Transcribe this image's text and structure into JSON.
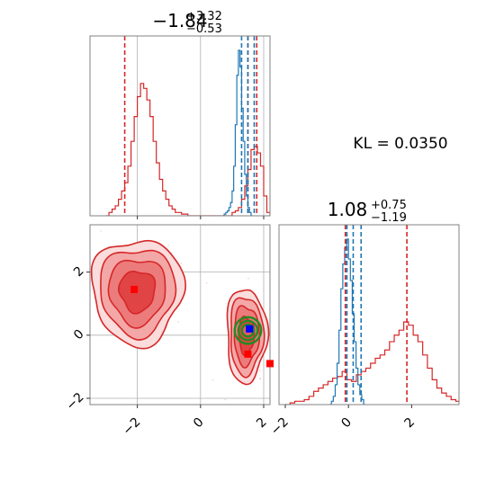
{
  "colors": {
    "prior": "#d62728",
    "posterior": "#1f77b4",
    "truth": "#0000ff",
    "reference": "#228b22",
    "samples": "#ff0000"
  },
  "kl_label": "KL = 0.0350",
  "chart_data": [
    {
      "type": "histogram",
      "panel": "marginal-x",
      "title": {
        "median": "−1.84",
        "plus": "+3.32",
        "minus": "−0.53"
      },
      "xlim": [
        -3.5,
        2.2
      ],
      "grid": true,
      "series": [
        {
          "name": "",
          "color": "#d62728",
          "bins_start": -3.0,
          "bin_width": 0.1,
          "heights": [
            0,
            0.02,
            0.04,
            0.06,
            0.1,
            0.15,
            0.2,
            0.3,
            0.45,
            0.6,
            0.72,
            0.8,
            0.77,
            0.7,
            0.6,
            0.45,
            0.32,
            0.22,
            0.15,
            0.1,
            0.06,
            0.04,
            0.02,
            0.02,
            0.01,
            0.01,
            0,
            0,
            0,
            0,
            0,
            0,
            0,
            0,
            0,
            0,
            0,
            0,
            0,
            0,
            0.02,
            0.03,
            0.05,
            0.1,
            0.18,
            0.28,
            0.4,
            0.42,
            0.38,
            0.3,
            0.12,
            0.02
          ]
        },
        {
          "name": "",
          "color": "#1f77b4",
          "bins_start": 0.7,
          "bin_width": 0.05,
          "heights": [
            0,
            0.01,
            0.02,
            0.03,
            0.05,
            0.08,
            0.15,
            0.3,
            0.55,
            0.85,
            1.0,
            0.9,
            0.65,
            0.45,
            0.25,
            0.12,
            0.05,
            0.02,
            0.0
          ]
        }
      ],
      "vlines": [
        {
          "x": -2.4,
          "color": "#d62728",
          "style": "dashed"
        },
        {
          "x": 1.5,
          "color": "#d62728",
          "style": "dashed"
        },
        {
          "x": 1.78,
          "color": "#d62728",
          "style": "dashed"
        },
        {
          "x": 1.3,
          "color": "#1f77b4",
          "style": "dashed"
        },
        {
          "x": 1.5,
          "color": "#1f77b4",
          "style": "dashed"
        },
        {
          "x": 1.7,
          "color": "#1f77b4",
          "style": "dashed"
        }
      ]
    },
    {
      "type": "contour",
      "panel": "joint",
      "xlim": [
        -3.5,
        2.2
      ],
      "ylim": [
        -2.2,
        3.5
      ],
      "xticks": [
        -2,
        0,
        2
      ],
      "yticks": [
        -2,
        0,
        2
      ],
      "xtick_labels": [
        "−2",
        "0",
        "2"
      ],
      "ytick_labels": [
        "−2",
        "0",
        "2"
      ],
      "grid": true,
      "regions": [
        {
          "name": "",
          "cx": -2.0,
          "cy": 1.4,
          "rx": 1.25,
          "ry": 1.45
        },
        {
          "name": "",
          "cx": 1.45,
          "cy": 0.0,
          "rx": 0.55,
          "ry": 1.3
        }
      ],
      "reference_circle": {
        "cx": 1.5,
        "cy": 0.15,
        "r": 0.42
      },
      "markers": [
        {
          "x": -2.1,
          "y": 1.45,
          "color": "#ff0000"
        },
        {
          "x": 1.55,
          "y": 0.2,
          "color": "#0000ff"
        },
        {
          "x": 1.5,
          "y": -0.6,
          "color": "#ff0000"
        },
        {
          "x": 2.2,
          "y": -0.9,
          "color": "#ff0000"
        }
      ]
    },
    {
      "type": "histogram",
      "panel": "marginal-y",
      "title": {
        "median": "1.08",
        "plus": "+0.75",
        "minus": "−1.19"
      },
      "xlim": [
        -2.2,
        3.5
      ],
      "xticks": [
        -2,
        0,
        2
      ],
      "xtick_labels": [
        "−2",
        "0",
        "2"
      ],
      "grid": false,
      "series": [
        {
          "name": "",
          "color": "#d62728",
          "bins_start": -2.0,
          "bin_width": 0.15,
          "heights": [
            0,
            0.01,
            0.02,
            0.02,
            0.03,
            0.05,
            0.08,
            0.1,
            0.12,
            0.14,
            0.16,
            0.17,
            0.2,
            0.15,
            0.14,
            0.18,
            0.2,
            0.22,
            0.25,
            0.28,
            0.3,
            0.33,
            0.38,
            0.42,
            0.45,
            0.5,
            0.48,
            0.42,
            0.38,
            0.3,
            0.22,
            0.15,
            0.1,
            0.07,
            0.05,
            0.03,
            0.02,
            0.01
          ]
        },
        {
          "name": "",
          "color": "#1f77b4",
          "bins_start": -0.6,
          "bin_width": 0.06,
          "heights": [
            0,
            0.02,
            0.05,
            0.12,
            0.25,
            0.45,
            0.7,
            0.85,
            0.95,
            1.0,
            0.88,
            0.75,
            0.55,
            0.38,
            0.22,
            0.12,
            0.06,
            0.03,
            0.0
          ]
        }
      ],
      "vlines": [
        {
          "x": -0.1,
          "color": "#d62728",
          "style": "dashed"
        },
        {
          "x": 1.85,
          "color": "#d62728",
          "style": "dashed"
        },
        {
          "x": -0.05,
          "color": "#1f77b4",
          "style": "dashed"
        },
        {
          "x": 0.15,
          "color": "#1f77b4",
          "style": "dashed"
        },
        {
          "x": 0.4,
          "color": "#1f77b4",
          "style": "dashed"
        }
      ]
    }
  ]
}
